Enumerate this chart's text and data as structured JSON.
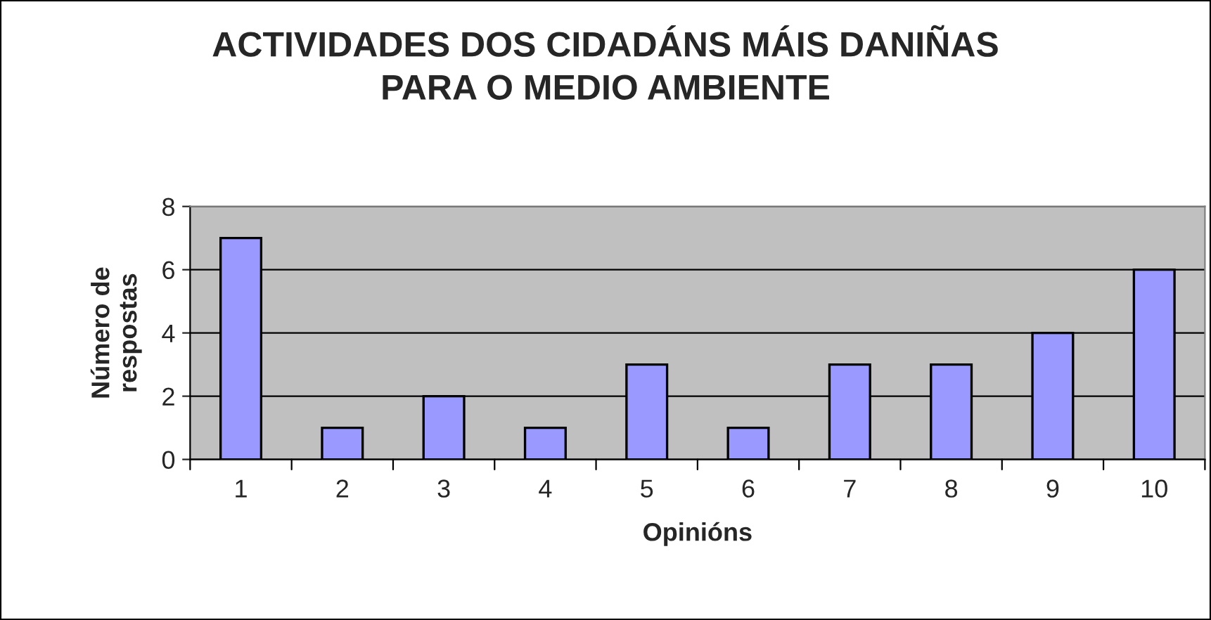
{
  "chart_data": {
    "type": "bar",
    "title": "ACTIVIDADES DOS CIDADÁNS MÁIS DANIÑAS\nPARA O MEDIO AMBIENTE",
    "xlabel": "Opinións",
    "ylabel": "Número de\nrespostas",
    "categories": [
      "1",
      "2",
      "3",
      "4",
      "5",
      "6",
      "7",
      "8",
      "9",
      "10"
    ],
    "values": [
      7,
      1,
      2,
      1,
      3,
      1,
      3,
      3,
      4,
      6
    ],
    "color": "#9999ff",
    "ylim": [
      0,
      8
    ],
    "yticks": [
      0,
      2,
      4,
      6,
      8
    ],
    "grid": "y"
  }
}
